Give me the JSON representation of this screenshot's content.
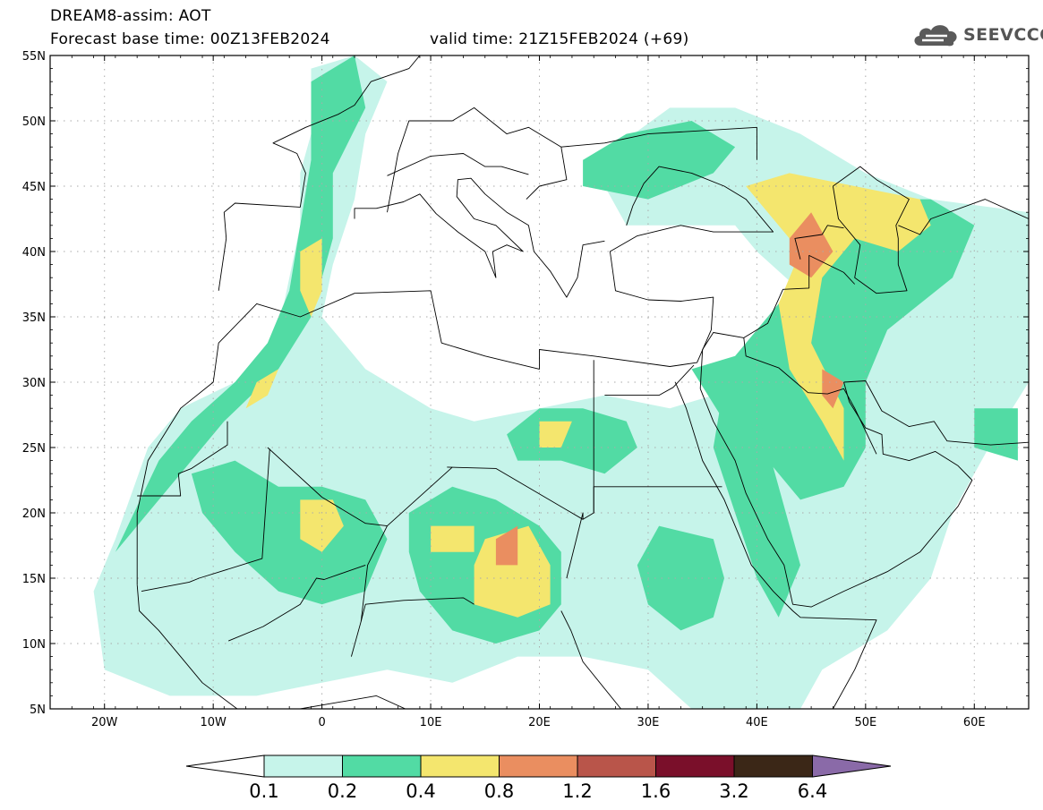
{
  "header": {
    "title": "DREAM8-assim: AOT",
    "base_time": "Forecast base time: 00Z13FEB2024",
    "valid_time": "valid time: 21Z15FEB2024 (+69)"
  },
  "logo": {
    "text": "SEEVCCC",
    "icon": "cloud-icon"
  },
  "map": {
    "lon_range": [
      -25,
      65
    ],
    "lat_range": [
      5,
      55
    ],
    "lon_ticks": [
      {
        "lon": -20,
        "label": "20W"
      },
      {
        "lon": -10,
        "label": "10W"
      },
      {
        "lon": 0,
        "label": "0"
      },
      {
        "lon": 10,
        "label": "10E"
      },
      {
        "lon": 20,
        "label": "20E"
      },
      {
        "lon": 30,
        "label": "30E"
      },
      {
        "lon": 40,
        "label": "40E"
      },
      {
        "lon": 50,
        "label": "50E"
      },
      {
        "lon": 60,
        "label": "60E"
      }
    ],
    "lat_ticks": [
      {
        "lat": 55,
        "label": "55N"
      },
      {
        "lat": 50,
        "label": "50N"
      },
      {
        "lat": 45,
        "label": "45N"
      },
      {
        "lat": 40,
        "label": "40N"
      },
      {
        "lat": 35,
        "label": "35N"
      },
      {
        "lat": 30,
        "label": "30N"
      },
      {
        "lat": 25,
        "label": "25N"
      },
      {
        "lat": 20,
        "label": "20N"
      },
      {
        "lat": 15,
        "label": "15N"
      },
      {
        "lat": 10,
        "label": "10N"
      },
      {
        "lat": 5,
        "label": "5N"
      }
    ],
    "grid": true
  },
  "colorbar": {
    "levels": [
      "0.1",
      "0.2",
      "0.4",
      "0.8",
      "1.2",
      "1.6",
      "3.2",
      "6.4"
    ],
    "colors": [
      "#c6f4ea",
      "#52dba4",
      "#f4e66e",
      "#ea8e60",
      "#b9554a",
      "#7a0f2a",
      "#3b2717"
    ],
    "overflow_color": "#8a6aa8",
    "underflow_color": "#ffffff"
  }
}
